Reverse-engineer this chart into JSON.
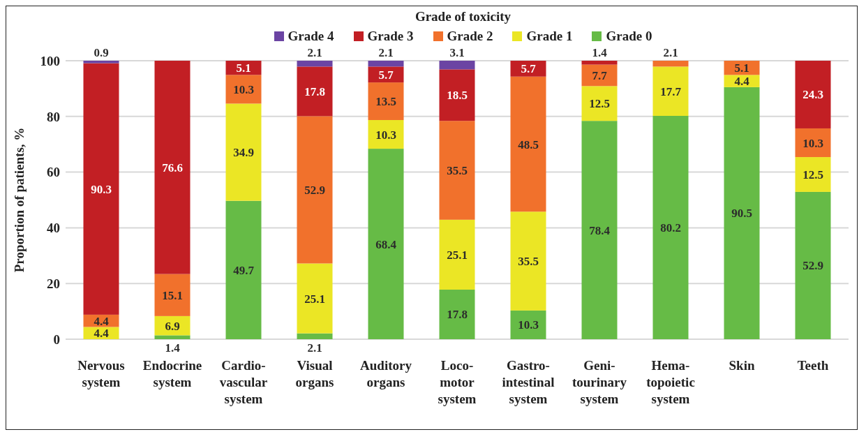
{
  "chart_data": {
    "type": "bar",
    "stacked": true,
    "legend_title": "Grade of toxicity",
    "ylabel": "Proportion of patients, %",
    "categories": [
      "Nervous system",
      "Endocrine system",
      "Cardio-vascular system",
      "Visual organs",
      "Auditory organs",
      "Loco-motor system",
      "Gastro-intestinal system",
      "Geni-tourinary system",
      "Hema-topoietic system",
      "Skin",
      "Teeth"
    ],
    "series": [
      {
        "name": "Grade 0",
        "color": "#66bb46",
        "values": [
          0,
          1.4,
          49.7,
          2.1,
          68.4,
          17.8,
          10.3,
          78.4,
          80.2,
          90.5,
          52.9
        ],
        "value_labels": [
          null,
          "1.4",
          "49.7",
          "2.1",
          "68.4",
          "17.8",
          "10.3",
          "78.4",
          "80.2",
          "90.5",
          "52.9"
        ]
      },
      {
        "name": "Grade 1",
        "color": "#ebe625",
        "values": [
          4.4,
          6.9,
          34.9,
          25.1,
          10.3,
          25.1,
          35.5,
          12.5,
          17.7,
          4.4,
          12.5
        ],
        "value_labels": [
          "4.4",
          "6.9",
          "34.9",
          "25.1",
          "10.3",
          "25.1",
          "35.5",
          "12.5",
          "17.7",
          "4.4",
          "12.5"
        ]
      },
      {
        "name": "Grade 2",
        "color": "#f1712c",
        "values": [
          4.4,
          15.1,
          10.3,
          52.9,
          13.5,
          35.5,
          48.5,
          7.7,
          2.1,
          5.1,
          10.3
        ],
        "value_labels": [
          "4.4",
          "15.1",
          "10.3",
          "52.9",
          "13.5",
          "35.5",
          "48.5",
          "7.7",
          "2.1",
          "5.1",
          "10.3"
        ]
      },
      {
        "name": "Grade 3",
        "color": "#c21f24",
        "values": [
          90.3,
          76.6,
          5.1,
          17.8,
          5.7,
          18.5,
          5.7,
          1.4,
          0,
          0,
          24.3
        ],
        "value_labels": [
          "90.3",
          "76.6",
          "5.1",
          "17.8",
          "5.7",
          "18.5",
          "5.7",
          "1.4",
          null,
          null,
          "24.3"
        ]
      },
      {
        "name": "Grade 4",
        "color": "#6b44a3",
        "values": [
          0.9,
          0,
          0,
          2.1,
          2.1,
          3.1,
          0,
          0,
          0,
          0,
          0
        ],
        "value_labels": [
          "0.9",
          null,
          null,
          "2.1",
          "2.1",
          "3.1",
          null,
          null,
          null,
          null,
          null
        ]
      }
    ],
    "ylim": [
      0,
      100
    ],
    "yticks": [
      0,
      20,
      40,
      60,
      80,
      100
    ],
    "grid": "y",
    "legend": "top"
  }
}
